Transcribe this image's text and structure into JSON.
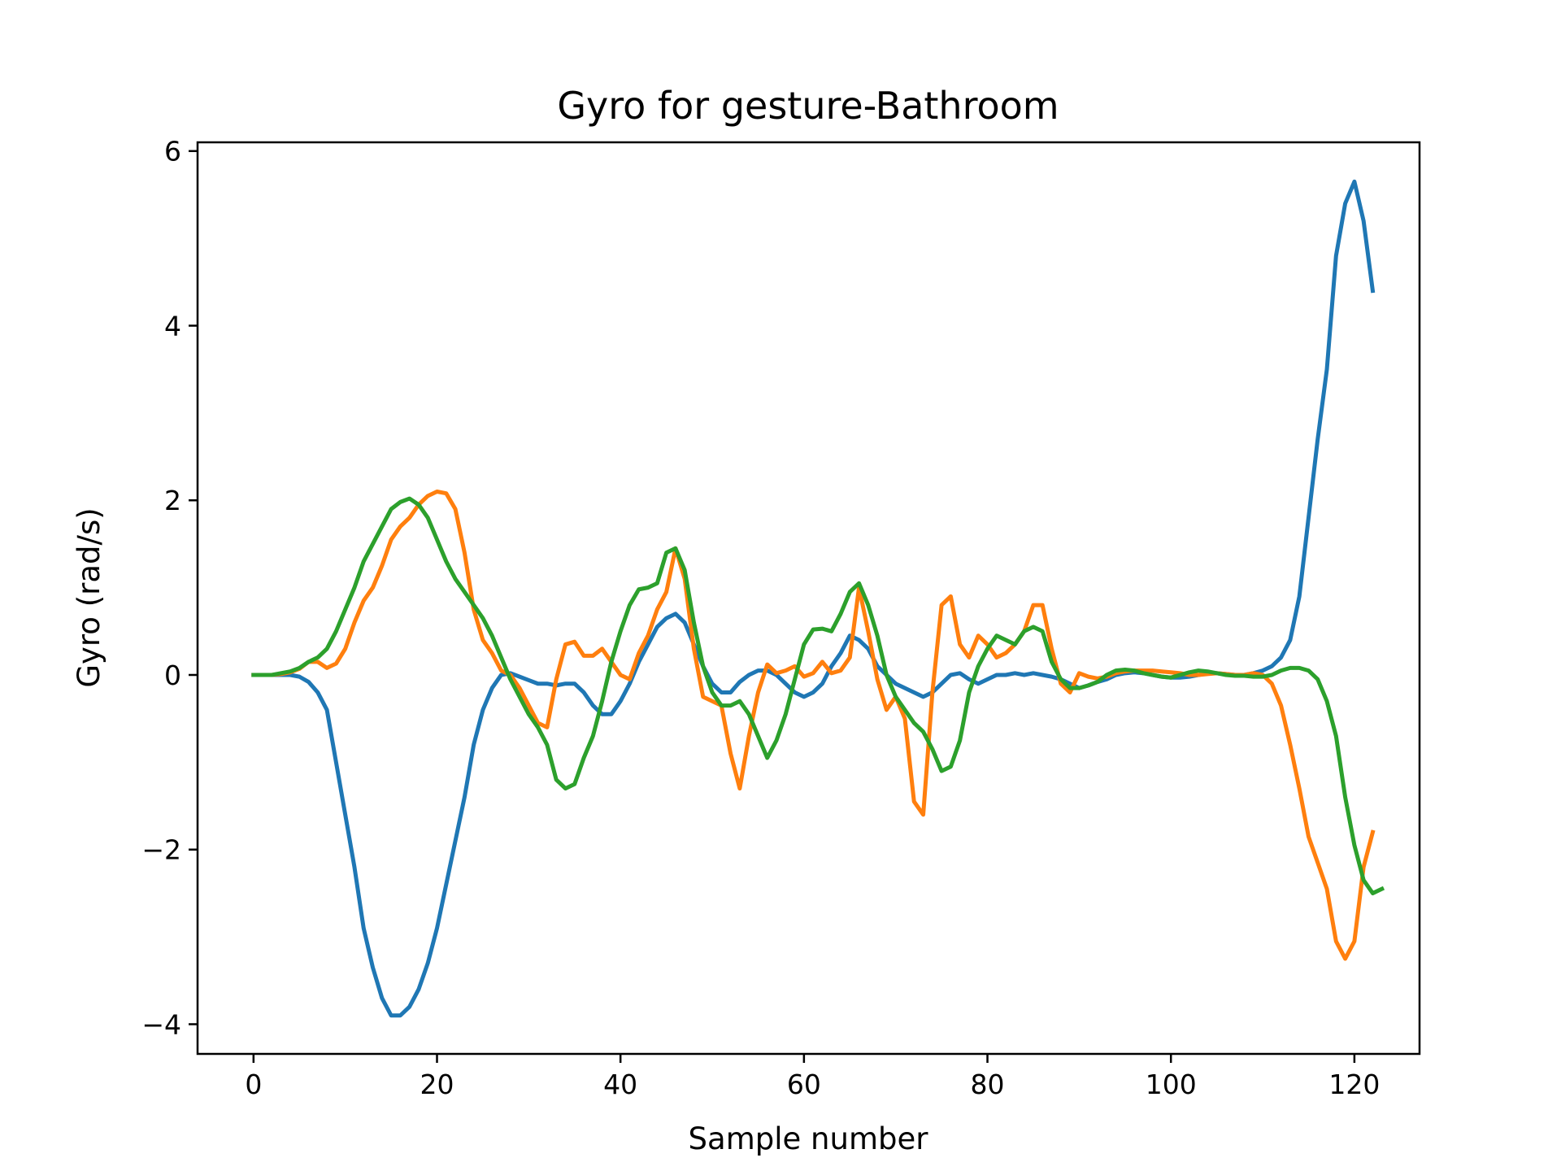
{
  "chart_data": {
    "type": "line",
    "title": "Gyro for gesture-Bathroom",
    "xlabel": "Sample number",
    "ylabel": "Gyro  (rad/s)",
    "xlim": [
      -6.1,
      127.1
    ],
    "ylim": [
      -4.34,
      6.1
    ],
    "xticks": [
      0,
      20,
      40,
      60,
      80,
      100,
      120
    ],
    "yticks": [
      -4,
      -2,
      0,
      2,
      4,
      6
    ],
    "xtick_labels": [
      "0",
      "20",
      "40",
      "60",
      "80",
      "100",
      "120"
    ],
    "ytick_labels": [
      "−4",
      "−2",
      "0",
      "2",
      "4",
      "6"
    ],
    "grid": false,
    "series": [
      {
        "color": "#1f77b4",
        "values": [
          0.0,
          0.0,
          0.0,
          0.0,
          0.0,
          -0.02,
          -0.08,
          -0.2,
          -0.4,
          -1.0,
          -1.6,
          -2.2,
          -2.9,
          -3.35,
          -3.7,
          -3.9,
          -3.9,
          -3.8,
          -3.6,
          -3.3,
          -2.9,
          -2.4,
          -1.9,
          -1.4,
          -0.8,
          -0.4,
          -0.15,
          0.0,
          0.02,
          -0.02,
          -0.06,
          -0.1,
          -0.1,
          -0.12,
          -0.1,
          -0.1,
          -0.2,
          -0.35,
          -0.45,
          -0.45,
          -0.3,
          -0.1,
          0.15,
          0.35,
          0.55,
          0.65,
          0.7,
          0.6,
          0.35,
          0.1,
          -0.1,
          -0.2,
          -0.2,
          -0.08,
          0.0,
          0.05,
          0.05,
          0.0,
          -0.1,
          -0.2,
          -0.25,
          -0.2,
          -0.1,
          0.1,
          0.25,
          0.45,
          0.4,
          0.3,
          0.1,
          0.0,
          -0.1,
          -0.15,
          -0.2,
          -0.25,
          -0.2,
          -0.1,
          0.0,
          0.02,
          -0.05,
          -0.1,
          -0.05,
          0.0,
          0.0,
          0.02,
          0.0,
          0.02,
          0.0,
          -0.02,
          -0.05,
          -0.1,
          -0.15,
          -0.12,
          -0.08,
          -0.05,
          0.0,
          0.02,
          0.03,
          0.02,
          0.0,
          -0.02,
          -0.03,
          -0.03,
          -0.02,
          0.0,
          0.02,
          0.02,
          0.01,
          0.0,
          0.0,
          0.02,
          0.05,
          0.1,
          0.2,
          0.4,
          0.9,
          1.8,
          2.7,
          3.5,
          4.8,
          5.4,
          5.65,
          5.2,
          4.4
        ]
      },
      {
        "color": "#ff7f0e",
        "values": [
          0.0,
          0.0,
          0.0,
          0.01,
          0.03,
          0.07,
          0.15,
          0.15,
          0.08,
          0.13,
          0.3,
          0.6,
          0.85,
          1.0,
          1.25,
          1.55,
          1.7,
          1.8,
          1.95,
          2.05,
          2.1,
          2.08,
          1.9,
          1.4,
          0.75,
          0.4,
          0.25,
          0.05,
          0.0,
          -0.15,
          -0.35,
          -0.55,
          -0.6,
          -0.05,
          0.35,
          0.38,
          0.22,
          0.22,
          0.3,
          0.15,
          0.0,
          -0.05,
          0.25,
          0.45,
          0.75,
          0.95,
          1.45,
          1.1,
          0.3,
          -0.25,
          -0.3,
          -0.35,
          -0.9,
          -1.3,
          -0.7,
          -0.2,
          0.12,
          0.02,
          0.05,
          0.1,
          -0.02,
          0.02,
          0.15,
          0.02,
          0.05,
          0.2,
          1.0,
          0.5,
          -0.05,
          -0.4,
          -0.25,
          -0.5,
          -1.45,
          -1.6,
          -0.2,
          0.8,
          0.9,
          0.35,
          0.2,
          0.45,
          0.35,
          0.2,
          0.25,
          0.35,
          0.5,
          0.8,
          0.8,
          0.3,
          -0.1,
          -0.2,
          0.02,
          -0.02,
          -0.04,
          -0.02,
          0.02,
          0.04,
          0.05,
          0.05,
          0.05,
          0.04,
          0.03,
          0.02,
          0.0,
          0.0,
          0.01,
          0.02,
          0.01,
          0.0,
          0.0,
          0.02,
          0.0,
          -0.1,
          -0.35,
          -0.8,
          -1.3,
          -1.85,
          -2.15,
          -2.45,
          -3.05,
          -3.25,
          -3.05,
          -2.2,
          -1.8
        ]
      },
      {
        "color": "#2ca02c",
        "values": [
          0.0,
          0.0,
          0.0,
          0.02,
          0.04,
          0.08,
          0.15,
          0.2,
          0.3,
          0.5,
          0.75,
          1.0,
          1.3,
          1.5,
          1.7,
          1.9,
          1.98,
          2.02,
          1.95,
          1.8,
          1.55,
          1.3,
          1.1,
          0.95,
          0.8,
          0.65,
          0.45,
          0.2,
          -0.05,
          -0.25,
          -0.45,
          -0.6,
          -0.8,
          -1.2,
          -1.3,
          -1.25,
          -0.95,
          -0.7,
          -0.3,
          0.15,
          0.5,
          0.8,
          0.98,
          1.0,
          1.05,
          1.4,
          1.45,
          1.2,
          0.6,
          0.1,
          -0.2,
          -0.35,
          -0.35,
          -0.3,
          -0.45,
          -0.7,
          -0.95,
          -0.75,
          -0.45,
          -0.05,
          0.35,
          0.52,
          0.53,
          0.5,
          0.7,
          0.95,
          1.05,
          0.8,
          0.45,
          0.0,
          -0.25,
          -0.4,
          -0.55,
          -0.65,
          -0.85,
          -1.1,
          -1.05,
          -0.75,
          -0.2,
          0.1,
          0.3,
          0.45,
          0.4,
          0.35,
          0.5,
          0.55,
          0.5,
          0.15,
          -0.05,
          -0.15,
          -0.15,
          -0.12,
          -0.08,
          0.0,
          0.05,
          0.06,
          0.05,
          0.02,
          0.0,
          -0.02,
          -0.03,
          0.0,
          0.03,
          0.05,
          0.04,
          0.02,
          0.0,
          -0.01,
          -0.01,
          -0.02,
          -0.02,
          0.0,
          0.05,
          0.08,
          0.08,
          0.05,
          -0.05,
          -0.3,
          -0.7,
          -1.4,
          -1.95,
          -2.35,
          -2.5,
          -2.45
        ]
      }
    ]
  }
}
